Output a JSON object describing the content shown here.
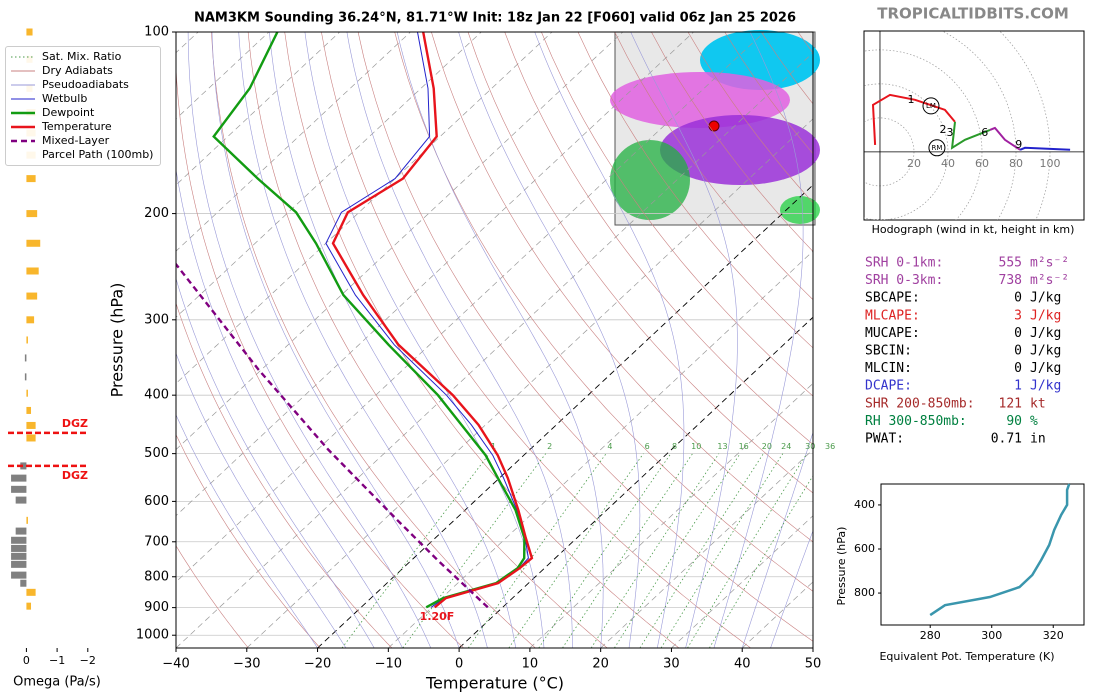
{
  "watermark": "TROPICALTIDBITS.COM",
  "chart_data": [
    {
      "type": "skewt",
      "title": "NAM3KM Sounding 36.24°N, 81.71°W Init: 18z Jan 22 [F060] valid 06z Jan 25 2026",
      "xlabel": "Temperature (°C)",
      "ylabel": "Pressure (hPa)",
      "xlim": [
        -40,
        50
      ],
      "ylim": [
        1050,
        100
      ],
      "log_y": true,
      "grid": true,
      "xticks": [
        {
          "value": -40,
          "label": "−40"
        },
        {
          "value": -30,
          "label": "−30"
        },
        {
          "value": -20,
          "label": "−20"
        },
        {
          "value": -10,
          "label": "−10"
        },
        0,
        10,
        20,
        30,
        40,
        50
      ],
      "yticks": [
        100,
        200,
        300,
        400,
        500,
        600,
        700,
        800,
        900,
        1000
      ],
      "reference_lines": [
        {
          "name": "Sat. Mix. Ratio",
          "color": "#4a9a4a",
          "style": "dotted"
        },
        {
          "name": "Dry Adiabats",
          "color": "#c98080",
          "style": "solid"
        },
        {
          "name": "Pseudoadiabats",
          "color": "#9a9ad8",
          "style": "solid"
        }
      ],
      "mixing_ratio_labels": [
        1,
        2,
        4,
        6,
        8,
        10,
        13,
        16,
        20,
        24,
        30,
        36
      ],
      "series": [
        {
          "name": "Wetbulb",
          "color": "#2222cc",
          "style": "solid",
          "pressure": [
            899,
            868,
            820,
            774,
            745,
            690,
            620,
            549,
            503,
            448,
            400,
            330,
            273,
            224,
            199,
            175,
            149,
            124,
            100
          ],
          "values": [
            -10.1,
            -9.6,
            -4.4,
            -3.6,
            -3.8,
            -7.3,
            -12.7,
            -19.4,
            -24.4,
            -32.0,
            -40.0,
            -55.0,
            -68.0,
            -80.0,
            -82.5,
            -80.0,
            -81.5,
            -89.0,
            -99.0
          ]
        },
        {
          "name": "Dewpoint",
          "color": "#129c12",
          "style": "solid",
          "pressure": [
            899,
            868,
            820,
            774,
            745,
            690,
            620,
            549,
            503,
            448,
            400,
            330,
            273,
            224,
            199,
            175,
            149,
            124,
            100
          ],
          "values": [
            -10.8,
            -9.8,
            -4.6,
            -3.8,
            -4.4,
            -7.4,
            -12.9,
            -20.2,
            -25.4,
            -33.4,
            -41.2,
            -55.8,
            -69.7,
            -81.4,
            -88.9,
            -99.4,
            -112.0,
            -114.2,
            -118.8
          ]
        },
        {
          "name": "Temperature",
          "color": "#e8141c",
          "style": "solid",
          "pressure": [
            899,
            868,
            820,
            774,
            745,
            690,
            620,
            549,
            503,
            448,
            400,
            330,
            273,
            224,
            199,
            175,
            149,
            124,
            100
          ],
          "values": [
            -9.6,
            -9.4,
            -4.3,
            -3.5,
            -3.3,
            -7.2,
            -12.5,
            -18.8,
            -23.7,
            -31.0,
            -39.1,
            -54.4,
            -66.9,
            -79.0,
            -81.6,
            -78.9,
            -80.5,
            -88.2,
            -98.2
          ]
        },
        {
          "name": "Mixed-Layer\nParcel Path (100mb)",
          "color": "#800080",
          "style": "dashed",
          "pressure": [
            899,
            751,
            645,
            493,
            363,
            241
          ],
          "values": [
            -2.1,
            -16.3,
            -28.0,
            -48.4,
            -70.4,
            -98.5
          ]
        }
      ],
      "surface_label": "1.20F"
    },
    {
      "type": "omega",
      "xlabel": "Omega (Pa/s)",
      "xlim": [
        0.6,
        -2.3
      ],
      "ylim": [
        1050,
        100
      ],
      "xticks": [
        0,
        {
          "value": -1,
          "label": "−1"
        },
        {
          "value": -2,
          "label": "−2"
        }
      ],
      "up_color": "#f8b62c",
      "down_color": "#808080",
      "pressure": [
        100,
        111,
        124,
        136,
        147,
        160,
        175,
        200,
        224,
        249,
        274,
        300,
        324,
        347,
        373,
        397,
        424,
        449,
        471,
        524,
        549,
        573,
        597,
        645,
        672,
        696,
        718,
        740,
        763,
        795,
        820,
        849,
        895
      ],
      "values": [
        -0.2,
        -0.2,
        -0.2,
        -0.3,
        -0.3,
        -0.3,
        -0.3,
        -0.35,
        -0.45,
        -0.4,
        -0.35,
        -0.25,
        -0.05,
        0.05,
        0.05,
        -0.05,
        -0.15,
        -0.3,
        -0.3,
        0.2,
        0.5,
        0.5,
        0.35,
        -0.05,
        0.35,
        0.5,
        0.5,
        0.5,
        0.5,
        0.5,
        0.2,
        -0.3,
        -0.15
      ],
      "dgz": [
        {
          "pressure": 462,
          "label": "DGZ"
        },
        {
          "pressure": 524,
          "label": "DGZ"
        }
      ],
      "dgz_color": "#ee1111"
    },
    {
      "type": "hodograph",
      "xlabel": "Hodograph (wind in kt, height in km)",
      "xlim": [
        -9.4,
        120
      ],
      "ylim": [
        -40,
        71
      ],
      "rings": [
        20,
        40,
        60,
        80,
        100
      ],
      "segments": [
        {
          "color": "#e8141c",
          "u": [
            -2.9,
            -4.1,
            5.9,
            20.6,
            38.2,
            44.1
          ],
          "v": [
            4.1,
            27.6,
            33.5,
            30.6,
            24.7,
            17.6
          ]
        },
        {
          "color": "#2a9a2a",
          "u": [
            44.1,
            42.4,
            50,
            64.7
          ],
          "v": [
            17.6,
            2.4,
            7.1,
            12.9
          ]
        },
        {
          "color": "#a020a0",
          "u": [
            64.7,
            67.6,
            73.5,
            82.4
          ],
          "v": [
            12.9,
            14.1,
            7.1,
            1.2
          ]
        },
        {
          "color": "#2222cc",
          "u": [
            82.4,
            85.3,
            111.8
          ],
          "v": [
            1.2,
            2.4,
            1.2
          ]
        }
      ],
      "annotations": [
        {
          "text": "1",
          "u": 20.6,
          "v": 30.6
        },
        {
          "text": "2",
          "u": 39.4,
          "v": 12.9
        },
        {
          "text": "3",
          "u": 43.5,
          "v": 11.2
        },
        {
          "text": "6",
          "u": 64,
          "v": 11.2
        },
        {
          "text": "9",
          "u": 84,
          "v": 4.1
        }
      ],
      "motions": [
        {
          "text": "LM",
          "u": 30,
          "v": 27
        },
        {
          "text": "RM",
          "u": 33.5,
          "v": 2.4
        }
      ]
    },
    {
      "type": "line",
      "xlabel": "Equivalent Pot. Temperature (K)",
      "ylabel": "Pressure (hPa)",
      "xlim": [
        264,
        330
      ],
      "ylim": [
        945,
        305
      ],
      "xticks": [
        280,
        300,
        320
      ],
      "yticks": [
        400,
        600,
        800
      ],
      "color": "#3a96ad",
      "pressure": [
        900,
        855,
        818,
        773,
        718,
        650,
        582,
        514,
        445,
        400,
        332,
        305
      ],
      "values": [
        280,
        284.8,
        299.4,
        309,
        313.2,
        316.1,
        318.7,
        320.3,
        322.6,
        324.5,
        324.5,
        325.2
      ]
    }
  ],
  "stats": [
    {
      "label": "SRH 0-1km:",
      "value": 555,
      "unit": "m²s⁻²",
      "color": "#a040a0"
    },
    {
      "label": "SRH 0-3km:",
      "value": 738,
      "unit": "m²s⁻²",
      "color": "#a040a0"
    },
    {
      "label": "SBCAPE:",
      "value": 0,
      "unit": "J/kg",
      "color": "#000000"
    },
    {
      "label": "MLCAPE:",
      "value": 3,
      "unit": "J/kg",
      "color": "#dd2222"
    },
    {
      "label": "MUCAPE:",
      "value": 0,
      "unit": "J/kg",
      "color": "#000000"
    },
    {
      "label": "SBCIN:",
      "value": 0,
      "unit": "J/kg",
      "color": "#000000"
    },
    {
      "label": "MLCIN:",
      "value": 0,
      "unit": "J/kg",
      "color": "#000000"
    },
    {
      "label": "DCAPE:",
      "value": 1,
      "unit": "J/kg",
      "color": "#3333cc"
    },
    {
      "label": "SHR 200-850mb:",
      "value": 121,
      "unit": "kt",
      "color": "#a52a2a"
    },
    {
      "label": "RH 300-850mb:",
      "value": 90,
      "unit": "%",
      "color": "#008040"
    },
    {
      "label": "PWAT:",
      "value": 0.71,
      "unit": "in",
      "color": "#000000"
    }
  ]
}
